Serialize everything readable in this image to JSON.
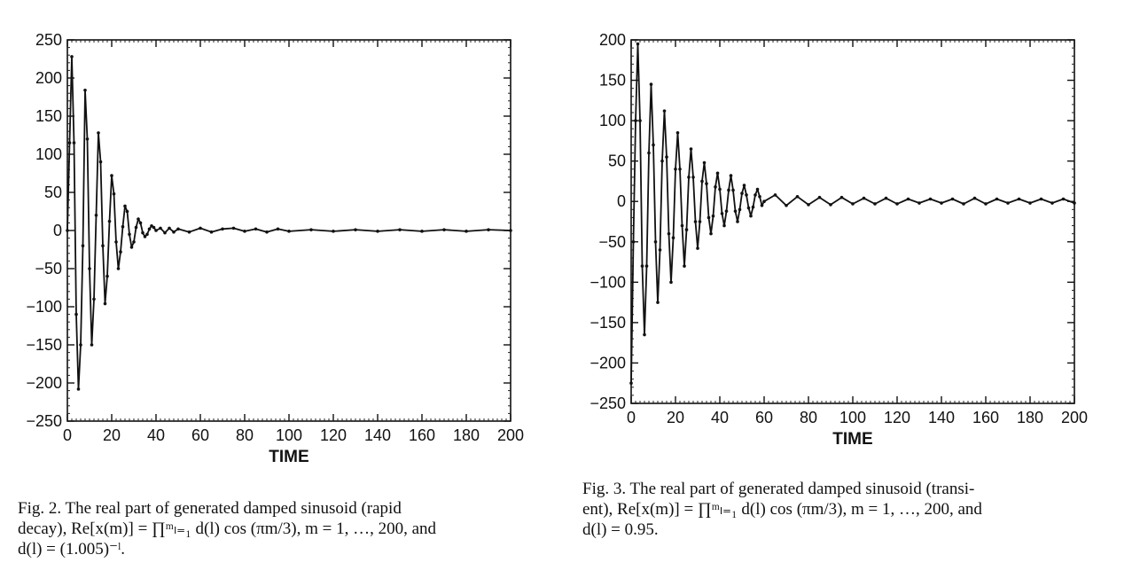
{
  "chart_data": [
    {
      "type": "line",
      "figure": "Fig. 2",
      "title": "",
      "xlabel": "TIME",
      "ylabel": "",
      "xlim": [
        0,
        200
      ],
      "ylim": [
        -250,
        250
      ],
      "xticks": [
        0,
        20,
        40,
        60,
        80,
        100,
        120,
        140,
        160,
        180,
        200
      ],
      "yticks": [
        250,
        200,
        150,
        100,
        50,
        0,
        -50,
        -100,
        -150,
        -200,
        -250
      ],
      "grid": false,
      "series": [
        {
          "x": [
            0,
            1,
            2,
            3,
            4,
            5,
            6,
            7,
            8,
            9,
            10,
            11,
            12,
            13,
            14,
            15,
            16,
            17,
            18,
            19,
            20,
            21,
            22,
            23,
            24,
            25,
            26,
            27,
            28,
            29,
            30,
            31,
            32,
            33,
            34,
            35,
            36,
            37,
            38,
            39,
            40,
            42,
            44,
            46,
            48,
            50,
            55,
            60,
            65,
            70,
            75,
            80,
            85,
            90,
            95,
            100,
            110,
            120,
            130,
            140,
            150,
            160,
            170,
            180,
            190,
            200
          ],
          "y": [
            0,
            115,
            228,
            115,
            -110,
            -208,
            -150,
            -20,
            184,
            120,
            -50,
            -150,
            -90,
            20,
            128,
            90,
            -20,
            -96,
            -60,
            12,
            72,
            48,
            -15,
            -50,
            -28,
            5,
            32,
            25,
            -5,
            -22,
            -15,
            4,
            15,
            10,
            -3,
            -8,
            -5,
            2,
            6,
            4,
            0,
            3,
            -3,
            3,
            -2,
            2,
            -2,
            3,
            -2,
            2,
            3,
            -1,
            2,
            -2,
            2,
            -1,
            1,
            -1,
            1,
            -1,
            1,
            -1,
            1,
            -1,
            1,
            0
          ]
        }
      ]
    },
    {
      "type": "line",
      "figure": "Fig. 3",
      "title": "",
      "xlabel": "TIME",
      "ylabel": "",
      "xlim": [
        0,
        200
      ],
      "ylim": [
        -250,
        200
      ],
      "xticks": [
        0,
        20,
        40,
        60,
        80,
        100,
        120,
        140,
        160,
        180,
        200
      ],
      "yticks": [
        200,
        150,
        100,
        50,
        0,
        -50,
        -100,
        -150,
        -200,
        -250
      ],
      "grid": false,
      "series": [
        {
          "x": [
            0,
            1,
            2,
            3,
            4,
            5,
            6,
            7,
            8,
            9,
            10,
            11,
            12,
            13,
            14,
            15,
            16,
            17,
            18,
            19,
            20,
            21,
            22,
            23,
            24,
            25,
            26,
            27,
            28,
            29,
            30,
            31,
            32,
            33,
            34,
            35,
            36,
            37,
            38,
            39,
            40,
            41,
            42,
            43,
            44,
            45,
            46,
            47,
            48,
            49,
            50,
            51,
            52,
            53,
            54,
            55,
            56,
            57,
            58,
            59,
            60,
            65,
            70,
            75,
            80,
            85,
            90,
            95,
            100,
            105,
            110,
            115,
            120,
            125,
            130,
            135,
            140,
            145,
            150,
            155,
            160,
            165,
            170,
            175,
            180,
            185,
            190,
            195,
            200
          ],
          "y": [
            -225,
            -50,
            100,
            195,
            100,
            -80,
            -165,
            -80,
            60,
            145,
            70,
            -50,
            -125,
            -60,
            50,
            112,
            55,
            -40,
            -100,
            -45,
            40,
            85,
            40,
            -30,
            -80,
            -35,
            30,
            65,
            30,
            -25,
            -58,
            -25,
            25,
            48,
            22,
            -20,
            -40,
            -18,
            18,
            35,
            15,
            -15,
            -30,
            -12,
            14,
            32,
            14,
            -12,
            -25,
            -10,
            10,
            20,
            8,
            -8,
            -18,
            -7,
            8,
            15,
            6,
            -5,
            0,
            8,
            -5,
            6,
            -4,
            5,
            -4,
            5,
            -3,
            4,
            -3,
            4,
            -3,
            3,
            -2,
            3,
            -2,
            3,
            -3,
            4,
            -3,
            3,
            -2,
            3,
            -2,
            3,
            -2,
            3,
            -2
          ]
        }
      ]
    }
  ],
  "captions": [
    {
      "lines": [
        "Fig. 2. The real part of generated damped sinusoid (rapid",
        "decay), Re[x(m)] = ∏ᵐₗ₌₁ d(l) cos (πm/3), m = 1, …, 200, and",
        "d(l) = (1.005)⁻ˡ."
      ]
    },
    {
      "lines": [
        "Fig. 3. The real part of generated damped sinusoid (transi-",
        "ent), Re[x(m)] = ∏ᵐₗ₌₁ d(l) cos (πm/3), m = 1, …, 200, and",
        "d(l) = 0.95."
      ]
    }
  ]
}
